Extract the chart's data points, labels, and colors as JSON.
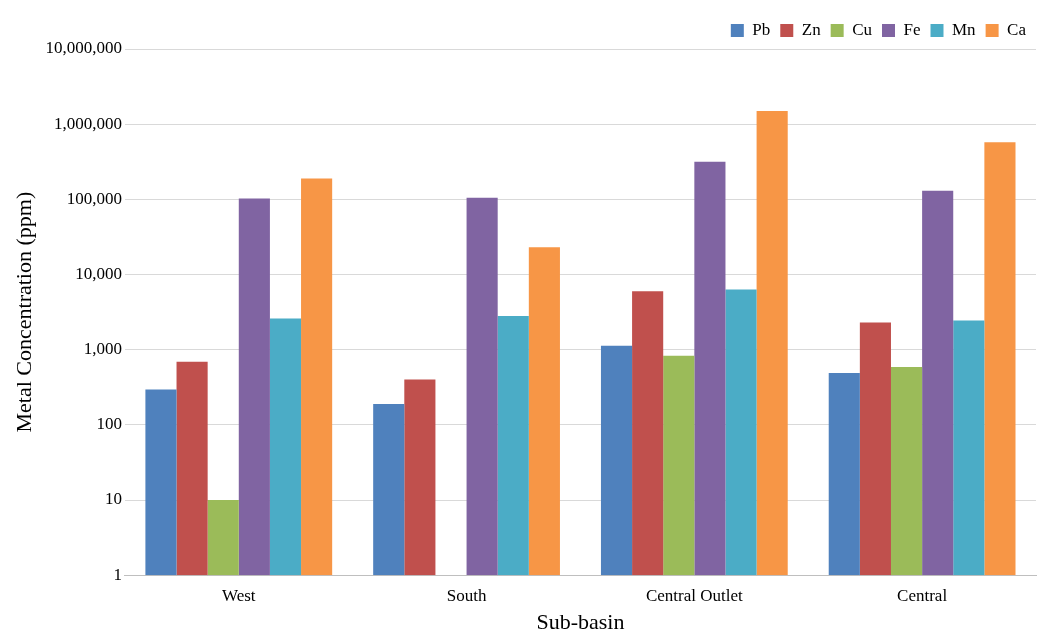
{
  "chart_data": {
    "type": "bar",
    "xlabel": "Sub-basin",
    "ylabel": "Metal Concentration (ppm)",
    "categories": [
      "West",
      "South",
      "Central Outlet",
      "Central"
    ],
    "series": [
      {
        "name": "Pb",
        "color": "#4f81bd",
        "values": [
          295,
          190,
          1130,
          490
        ]
      },
      {
        "name": "Zn",
        "color": "#c0504d",
        "values": [
          690,
          400,
          6000,
          2300
        ]
      },
      {
        "name": "Cu",
        "color": "#9bbb59",
        "values": [
          10,
          null,
          830,
          590
        ]
      },
      {
        "name": "Fe",
        "color": "#8064a2",
        "values": [
          103000,
          105000,
          316000,
          130000
        ]
      },
      {
        "name": "Mn",
        "color": "#4bacc6",
        "values": [
          2600,
          2800,
          6300,
          2450
        ]
      },
      {
        "name": "Ca",
        "color": "#f79646",
        "values": [
          190000,
          23000,
          1500000,
          575000
        ]
      }
    ],
    "log": "y",
    "ylim": [
      1,
      10000000
    ],
    "yticks": [
      1,
      10,
      100,
      {
        "value": 1000,
        "label": "1,000"
      },
      {
        "value": 10000,
        "label": "10,000"
      },
      {
        "value": 100000,
        "label": "100,000"
      },
      {
        "value": 1000000,
        "label": "1,000,000"
      },
      {
        "value": 10000000,
        "label": "10,000,000"
      }
    ],
    "grid": "y",
    "legend": "top right"
  }
}
